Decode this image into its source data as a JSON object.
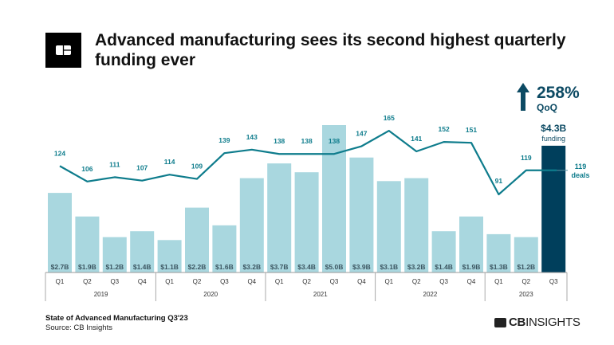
{
  "title": "Advanced manufacturing sees its second highest quarterly funding ever",
  "footer": {
    "report": "State of Advanced Manufacturing Q3'23",
    "source": "Source: CB Insights",
    "brand_bold": "CB",
    "brand_light": "INSIGHTS"
  },
  "colors": {
    "bar": "#a9d7df",
    "bar_highlight": "#003f5c",
    "line": "#0e7c8c",
    "annotation": "#0c4a63"
  },
  "chart_data": {
    "type": "bar+line",
    "quarters": [
      "Q1",
      "Q2",
      "Q3",
      "Q4",
      "Q1",
      "Q2",
      "Q3",
      "Q4",
      "Q1",
      "Q2",
      "Q3",
      "Q4",
      "Q1",
      "Q2",
      "Q3",
      "Q4",
      "Q1",
      "Q2",
      "Q3"
    ],
    "years": [
      {
        "label": "2019",
        "span": 4
      },
      {
        "label": "2020",
        "span": 4
      },
      {
        "label": "2021",
        "span": 4
      },
      {
        "label": "2022",
        "span": 4
      },
      {
        "label": "2023",
        "span": 3
      }
    ],
    "series": [
      {
        "name": "funding",
        "unit": "$B",
        "values": [
          2.7,
          1.9,
          1.2,
          1.4,
          1.1,
          2.2,
          1.6,
          3.2,
          3.7,
          3.4,
          5.0,
          3.9,
          3.1,
          3.2,
          1.4,
          1.9,
          1.3,
          1.2,
          4.3
        ],
        "labels": [
          "$2.7B",
          "$1.9B",
          "$1.2B",
          "$1.4B",
          "$1.1B",
          "$2.2B",
          "$1.6B",
          "$3.2B",
          "$3.7B",
          "$3.4B",
          "$5.0B",
          "$3.9B",
          "$3.1B",
          "$3.2B",
          "$1.4B",
          "$1.9B",
          "$1.3B",
          "$1.2B",
          "$4.3B"
        ]
      },
      {
        "name": "deals",
        "values": [
          124,
          106,
          111,
          107,
          114,
          109,
          139,
          143,
          138,
          138,
          138,
          147,
          165,
          141,
          152,
          151,
          91,
          119,
          119
        ]
      }
    ],
    "annotations": {
      "pct": "258%",
      "pct_sub": "QoQ",
      "last_funding": "$4.3B",
      "last_funding_sub": "funding",
      "last_deals": "119",
      "last_deals_sub": "deals"
    }
  }
}
